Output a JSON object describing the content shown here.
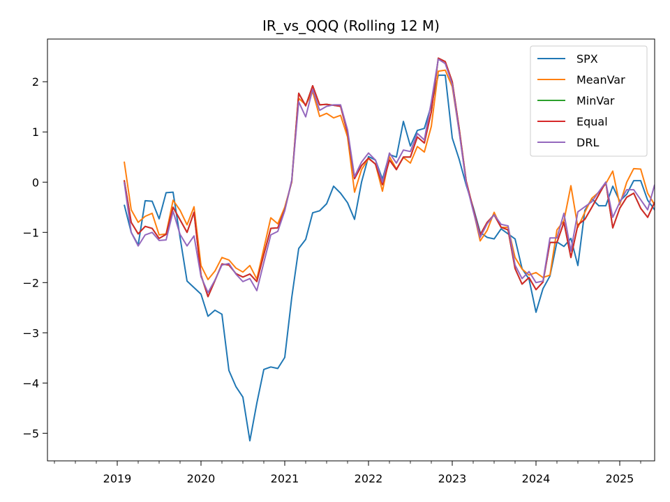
{
  "chart_data": {
    "type": "line",
    "title": "IR_vs_QQQ (Rolling 12 M)",
    "xlabel": "",
    "ylabel": "",
    "xlim": [
      "2018-03",
      "2025-06"
    ],
    "ylim": [
      -5.55,
      2.85
    ],
    "x_ticks": [
      "2019",
      "2020",
      "2021",
      "2022",
      "2023",
      "2024",
      "2025"
    ],
    "y_ticks": [
      2,
      1,
      0,
      -1,
      -2,
      -3,
      -4,
      -5
    ],
    "y_tick_labels": [
      "2",
      "1",
      "0",
      "−1",
      "−2",
      "−3",
      "−4",
      "−5"
    ],
    "grid": false,
    "legend_position": "top-right",
    "start_month": "2019-02",
    "series": [
      {
        "name": "SPX",
        "color": "#1f77b4",
        "values": [
          -0.45,
          -1.0,
          -1.25,
          -0.37,
          -0.38,
          -0.73,
          -0.21,
          -0.2,
          -1.1,
          -1.97,
          -2.1,
          -2.23,
          -2.67,
          -2.55,
          -2.63,
          -3.75,
          -4.07,
          -4.28,
          -5.15,
          -4.4,
          -3.73,
          -3.68,
          -3.71,
          -3.49,
          -2.3,
          -1.32,
          -1.14,
          -0.61,
          -0.57,
          -0.43,
          -0.08,
          -0.22,
          -0.41,
          -0.74,
          0.0,
          0.51,
          0.44,
          0.06,
          0.55,
          0.5,
          1.21,
          0.72,
          1.03,
          1.07,
          1.53,
          2.13,
          2.13,
          0.88,
          0.45,
          -0.06,
          -0.5,
          -1.0,
          -1.1,
          -1.13,
          -0.93,
          -1.03,
          -1.13,
          -1.72,
          -1.93,
          -2.59,
          -2.12,
          -1.87,
          -1.19,
          -1.28,
          -1.12,
          -1.66,
          -0.56,
          -0.33,
          -0.47,
          -0.47,
          -0.08,
          -0.38,
          -0.24,
          0.03,
          0.03,
          -0.36,
          -0.55,
          -0.34
        ]
      },
      {
        "name": "MeanVar",
        "color": "#ff7f0e",
        "values": [
          0.41,
          -0.55,
          -0.8,
          -0.68,
          -0.62,
          -1.05,
          -1.03,
          -0.36,
          -0.56,
          -0.85,
          -0.49,
          -1.66,
          -1.94,
          -1.77,
          -1.5,
          -1.55,
          -1.71,
          -1.79,
          -1.66,
          -1.93,
          -1.32,
          -0.71,
          -0.83,
          -0.5,
          0.0,
          1.67,
          1.54,
          1.8,
          1.31,
          1.37,
          1.28,
          1.33,
          0.9,
          -0.2,
          0.25,
          0.47,
          0.36,
          -0.18,
          0.51,
          0.26,
          0.49,
          0.38,
          0.71,
          0.6,
          1.11,
          2.21,
          2.23,
          1.9,
          1.0,
          0.0,
          -0.55,
          -1.17,
          -0.96,
          -0.6,
          -0.9,
          -0.9,
          -1.5,
          -1.73,
          -1.85,
          -1.8,
          -1.9,
          -1.85,
          -0.95,
          -0.77,
          -0.07,
          -0.9,
          -0.6,
          -0.32,
          -0.2,
          -0.03,
          0.22,
          -0.45,
          0.0,
          0.27,
          0.26,
          -0.22,
          -0.45,
          -0.13
        ]
      },
      {
        "name": "MinVar",
        "color": "#2ca02c",
        "values": [
          0.04,
          -0.8,
          -1.03,
          -0.88,
          -0.92,
          -1.12,
          -1.04,
          -0.5,
          -0.75,
          -1.0,
          -0.6,
          -1.85,
          -2.28,
          -1.96,
          -1.63,
          -1.65,
          -1.82,
          -1.89,
          -1.83,
          -1.98,
          -1.44,
          -0.92,
          -0.91,
          -0.55,
          0.02,
          1.77,
          1.52,
          1.92,
          1.54,
          1.55,
          1.53,
          1.51,
          0.98,
          0.07,
          0.33,
          0.48,
          0.36,
          -0.05,
          0.44,
          0.25,
          0.5,
          0.5,
          0.9,
          0.78,
          1.4,
          2.47,
          2.4,
          2.0,
          1.06,
          0.02,
          -0.53,
          -1.05,
          -0.8,
          -0.65,
          -0.9,
          -0.95,
          -1.72,
          -2.03,
          -1.9,
          -2.14,
          -1.99,
          -1.2,
          -1.2,
          -0.8,
          -1.5,
          -0.85,
          -0.74,
          -0.5,
          -0.25,
          0.0,
          -0.91,
          -0.52,
          -0.3,
          -0.22,
          -0.52,
          -0.7,
          -0.4
        ]
      },
      {
        "name": "Equal",
        "color": "#d62728",
        "values": [
          0.04,
          -0.8,
          -1.03,
          -0.88,
          -0.92,
          -1.12,
          -1.04,
          -0.5,
          -0.75,
          -1.0,
          -0.6,
          -1.85,
          -2.28,
          -1.96,
          -1.63,
          -1.65,
          -1.82,
          -1.89,
          -1.83,
          -1.98,
          -1.44,
          -0.92,
          -0.91,
          -0.55,
          0.02,
          1.77,
          1.52,
          1.92,
          1.54,
          1.55,
          1.53,
          1.51,
          0.98,
          0.07,
          0.33,
          0.48,
          0.36,
          -0.05,
          0.44,
          0.25,
          0.5,
          0.5,
          0.9,
          0.78,
          1.4,
          2.47,
          2.4,
          2.0,
          1.06,
          0.02,
          -0.53,
          -1.05,
          -0.8,
          -0.65,
          -0.9,
          -0.95,
          -1.72,
          -2.03,
          -1.9,
          -2.14,
          -1.99,
          -1.2,
          -1.2,
          -0.8,
          -1.5,
          -0.85,
          -0.74,
          -0.5,
          -0.25,
          0.0,
          -0.91,
          -0.52,
          -0.3,
          -0.22,
          -0.52,
          -0.7,
          -0.4
        ]
      },
      {
        "name": "DRL",
        "color": "#9467bd",
        "values": [
          0.0,
          -1.0,
          -1.27,
          -1.05,
          -1.0,
          -1.16,
          -1.15,
          -0.58,
          -1.04,
          -1.27,
          -1.07,
          -1.88,
          -2.2,
          -1.95,
          -1.65,
          -1.62,
          -1.83,
          -1.98,
          -1.92,
          -2.16,
          -1.6,
          -1.05,
          -0.98,
          -0.57,
          0.04,
          1.6,
          1.3,
          1.85,
          1.43,
          1.51,
          1.54,
          1.54,
          1.04,
          0.11,
          0.4,
          0.58,
          0.44,
          0.0,
          0.58,
          0.38,
          0.64,
          0.61,
          0.97,
          0.84,
          1.6,
          2.45,
          2.36,
          1.95,
          1.0,
          -0.02,
          -0.57,
          -1.1,
          -0.83,
          -0.65,
          -0.84,
          -0.87,
          -1.65,
          -1.92,
          -1.78,
          -2.0,
          -1.97,
          -1.11,
          -1.11,
          -0.62,
          -1.37,
          -0.59,
          -0.49,
          -0.39,
          -0.19,
          0.0,
          -0.7,
          -0.4,
          -0.15,
          -0.15,
          -0.35,
          -0.55,
          -0.05
        ]
      }
    ]
  }
}
